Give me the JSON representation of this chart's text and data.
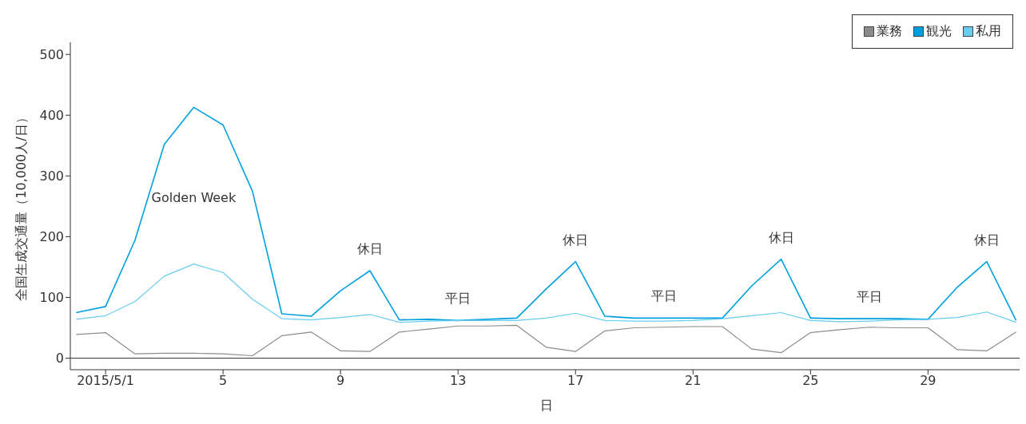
{
  "chart_data": {
    "type": "line",
    "xlabel": "日",
    "ylabel": "全国生成交通量（10,000人/日）",
    "x": [
      0,
      1,
      2,
      3,
      4,
      5,
      6,
      7,
      8,
      9,
      10,
      11,
      12,
      13,
      14,
      15,
      16,
      17,
      18,
      19,
      20,
      21,
      22,
      23,
      24,
      25,
      26,
      27,
      28,
      29,
      30,
      31,
      32
    ],
    "series": [
      {
        "name": "業務",
        "color": "#8c8c8c",
        "values": [
          39,
          42,
          7,
          8,
          8,
          7,
          4,
          37,
          43,
          12,
          11,
          43,
          48,
          53,
          53,
          54,
          18,
          11,
          45,
          50,
          51,
          52,
          52,
          15,
          9,
          42,
          47,
          51,
          50,
          50,
          14,
          12,
          43
        ]
      },
      {
        "name": "観光",
        "color": "#00a0e0",
        "values": [
          75,
          85,
          194,
          352,
          413,
          384,
          275,
          73,
          69,
          111,
          144,
          63,
          64,
          62,
          64,
          66,
          114,
          159,
          69,
          66,
          66,
          66,
          66,
          119,
          163,
          66,
          65,
          65,
          65,
          64,
          117,
          159,
          62
        ]
      },
      {
        "name": "私用",
        "color": "#66ccf0",
        "values": [
          64,
          70,
          93,
          135,
          155,
          141,
          97,
          65,
          63,
          67,
          72,
          59,
          61,
          62,
          62,
          62,
          66,
          74,
          62,
          61,
          61,
          62,
          65,
          70,
          75,
          62,
          60,
          61,
          63,
          64,
          67,
          76,
          59
        ]
      }
    ],
    "xlim": [
      -0.2,
      32.2
    ],
    "xticks": [
      {
        "value": 1,
        "label": "2015/5/1"
      },
      5,
      9,
      13,
      17,
      21,
      25,
      29
    ],
    "ylim": [
      -19,
      520
    ],
    "yticks": [
      0,
      100,
      200,
      300,
      400,
      500
    ],
    "ref_lines": [
      {
        "axis": "y",
        "value": 0,
        "color": "#333333"
      }
    ],
    "annotations": [
      "Golden Week",
      {
        "text": "休日",
        "x": 10,
        "y": 144
      },
      {
        "text": "休日",
        "x": 17,
        "y": 159
      },
      {
        "text": "休日",
        "x": 24,
        "y": 163
      },
      {
        "text": "休日",
        "x": 31,
        "y": 159
      },
      {
        "text": "平日",
        "x": 13,
        "y": 62
      },
      {
        "text": "平日",
        "x": 20,
        "y": 66
      },
      {
        "text": "平日",
        "x": 27,
        "y": 65
      }
    ],
    "legend": "top right",
    "grid": false,
    "marker": "none",
    "line_style": "solid"
  }
}
